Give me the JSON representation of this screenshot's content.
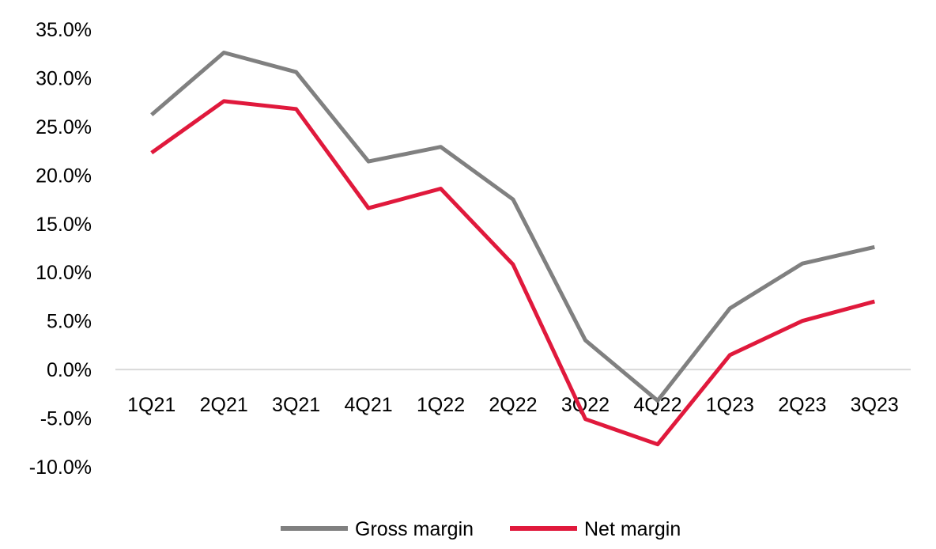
{
  "chart_data": {
    "type": "line",
    "categories": [
      "1Q21",
      "2Q21",
      "3Q21",
      "4Q21",
      "1Q22",
      "2Q22",
      "3Q22",
      "4Q22",
      "1Q23",
      "2Q23",
      "3Q23"
    ],
    "series": [
      {
        "name": "Gross margin",
        "color": "#808080",
        "values": [
          26.2,
          32.6,
          30.6,
          21.4,
          22.9,
          17.5,
          3.0,
          -3.2,
          6.3,
          10.9,
          12.6
        ]
      },
      {
        "name": "Net margin",
        "color": "#E0193C",
        "values": [
          22.3,
          27.6,
          26.8,
          16.6,
          18.6,
          10.8,
          -5.1,
          -7.7,
          1.5,
          5.0,
          7.0
        ]
      }
    ],
    "y_ticks": [
      "35.0%",
      "30.0%",
      "25.0%",
      "20.0%",
      "15.0%",
      "10.0%",
      "5.0%",
      "0.0%",
      "-5.0%",
      "-10.0%"
    ],
    "ylim": [
      -10,
      35
    ],
    "legend_position": "bottom-center",
    "grid": false,
    "zero_line_color": "#D9D9D9"
  }
}
